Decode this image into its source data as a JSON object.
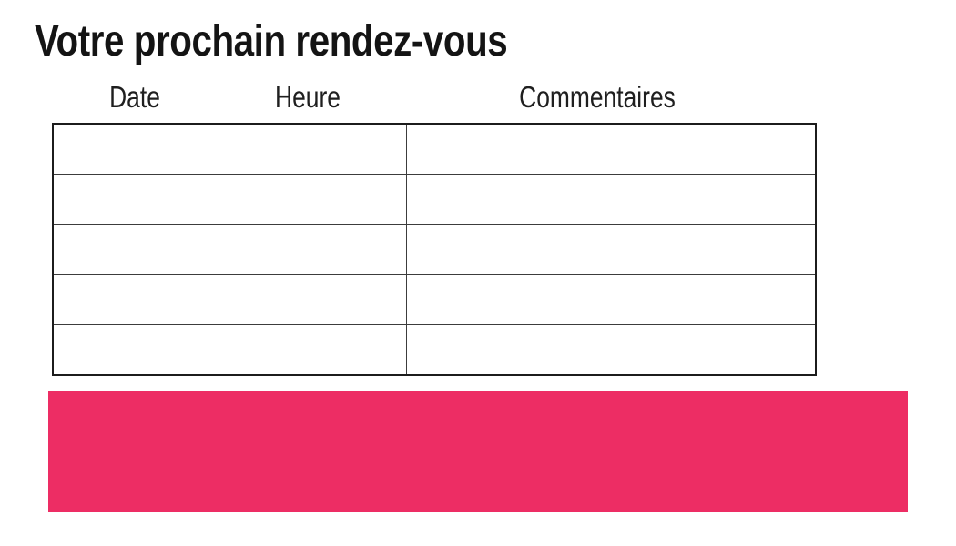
{
  "page": {
    "title": "Votre prochain rendez-vous"
  },
  "appointments_table": {
    "headers": [
      "Date",
      "Heure",
      "Commentaires"
    ],
    "rows": [
      [
        "",
        "",
        ""
      ],
      [
        "",
        "",
        ""
      ],
      [
        "",
        "",
        ""
      ],
      [
        "",
        "",
        ""
      ],
      [
        "",
        "",
        ""
      ]
    ]
  },
  "banner": {
    "color": "#ED2D64"
  },
  "colors": {
    "accent_pink": "#ED2D64",
    "table_border": "#3C3C3C",
    "text": "#141414"
  }
}
